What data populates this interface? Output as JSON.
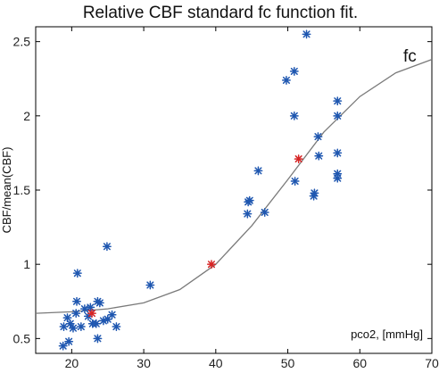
{
  "chart_data": {
    "type": "scatter",
    "title": "Relative CBF standard fc function fit.",
    "xlabel": "pco2, [mmHg]",
    "ylabel": "CBF/mean(CBF)",
    "xlim": [
      15,
      70
    ],
    "ylim": [
      0.4,
      2.6
    ],
    "xticks": [
      20,
      30,
      40,
      50,
      60,
      70
    ],
    "yticks": [
      0.5,
      1,
      1.5,
      2,
      2.5
    ],
    "grid": false,
    "curve_label": "fc",
    "colors": {
      "data": "#1f57b0",
      "fit_points": "#d62424",
      "curve": "#7a7a7a",
      "axis": "#000000"
    },
    "series": [
      {
        "type": "scatter",
        "marker": "asterisk",
        "color": "#1f57b0",
        "points": [
          [
            18.8,
            0.45
          ],
          [
            19.6,
            0.48
          ],
          [
            18.9,
            0.58
          ],
          [
            19.4,
            0.64
          ],
          [
            19.8,
            0.6
          ],
          [
            20.2,
            0.57
          ],
          [
            20.6,
            0.67
          ],
          [
            20.7,
            0.75
          ],
          [
            21.3,
            0.58
          ],
          [
            21.8,
            0.7
          ],
          [
            22.3,
            0.65
          ],
          [
            22.6,
            0.71
          ],
          [
            22.9,
            0.6
          ],
          [
            23.4,
            0.6
          ],
          [
            23.6,
            0.75
          ],
          [
            23.9,
            0.74
          ],
          [
            24.4,
            0.62
          ],
          [
            25.0,
            0.63
          ],
          [
            25.6,
            0.66
          ],
          [
            26.2,
            0.58
          ],
          [
            23.6,
            0.5
          ],
          [
            20.8,
            0.94
          ],
          [
            24.9,
            1.12
          ],
          [
            30.9,
            0.86
          ],
          [
            44.4,
            1.34
          ],
          [
            44.5,
            1.42
          ],
          [
            44.7,
            1.43
          ],
          [
            45.9,
            1.63
          ],
          [
            46.8,
            1.35
          ],
          [
            49.8,
            2.24
          ],
          [
            50.9,
            2.3
          ],
          [
            50.9,
            2.0
          ],
          [
            51.0,
            1.56
          ],
          [
            52.6,
            2.55
          ],
          [
            53.6,
            1.46
          ],
          [
            53.7,
            1.48
          ],
          [
            54.2,
            1.86
          ],
          [
            54.3,
            1.73
          ],
          [
            56.9,
            2.1
          ],
          [
            56.9,
            2.0
          ],
          [
            56.9,
            1.75
          ],
          [
            56.9,
            1.61
          ],
          [
            56.9,
            1.58
          ]
        ]
      },
      {
        "type": "scatter",
        "marker": "asterisk",
        "color": "#d62424",
        "points": [
          [
            22.8,
            0.67
          ],
          [
            39.4,
            1.0
          ],
          [
            51.5,
            1.71
          ]
        ]
      },
      {
        "type": "line",
        "name": "fc",
        "color": "#7a7a7a",
        "x": [
          15,
          20,
          25,
          30,
          35,
          40,
          45,
          50,
          55,
          60,
          65,
          70
        ],
        "y": [
          0.67,
          0.68,
          0.7,
          0.74,
          0.83,
          1.0,
          1.26,
          1.57,
          1.89,
          2.13,
          2.29,
          2.38
        ]
      }
    ]
  }
}
